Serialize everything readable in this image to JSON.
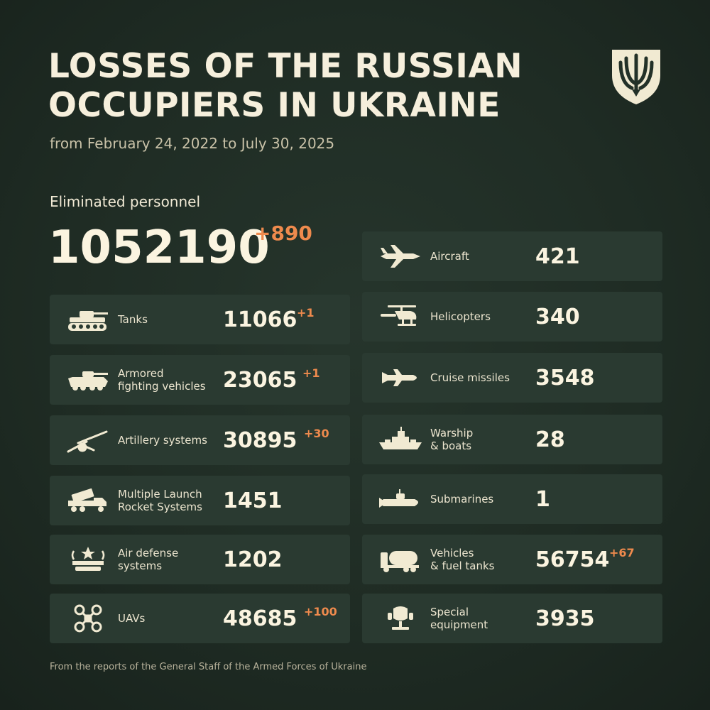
{
  "header": {
    "title_line1": "LOSSES OF THE RUSSIAN",
    "title_line2": "OCCUPIERS IN UKRAINE",
    "subtitle": "from February 24, 2022 to July 30, 2025"
  },
  "emblem": {
    "icon": "trident-shield-icon"
  },
  "personnel": {
    "label": "Eliminated personnel",
    "value": "1052190",
    "delta": "+890"
  },
  "left_cards": [
    {
      "icon": "tank-icon",
      "label": "Tanks",
      "value": "11066",
      "delta": "+1"
    },
    {
      "icon": "afv-icon",
      "label": "Armored\nfighting vehicles",
      "value": "23065",
      "delta": "+1"
    },
    {
      "icon": "artillery-icon",
      "label": "Artillery systems",
      "value": "30895",
      "delta": "+30"
    },
    {
      "icon": "mlrs-icon",
      "label": "Multiple Launch\nRocket Systems",
      "value": "1451",
      "delta": ""
    },
    {
      "icon": "air-defense-icon",
      "label": "Air defense\nsystems",
      "value": "1202",
      "delta": ""
    },
    {
      "icon": "uav-icon",
      "label": "UAVs",
      "value": "48685",
      "delta": "+100"
    }
  ],
  "right_cards": [
    {
      "icon": "aircraft-icon",
      "label": "Aircraft",
      "value": "421",
      "delta": ""
    },
    {
      "icon": "helicopter-icon",
      "label": "Helicopters",
      "value": "340",
      "delta": ""
    },
    {
      "icon": "cruise-missile-icon",
      "label": "Cruise missiles",
      "value": "3548",
      "delta": ""
    },
    {
      "icon": "warship-icon",
      "label": "Warship\n& boats",
      "value": "28",
      "delta": ""
    },
    {
      "icon": "submarine-icon",
      "label": "Submarines",
      "value": "1",
      "delta": ""
    },
    {
      "icon": "fuel-truck-icon",
      "label": "Vehicles\n& fuel tanks",
      "value": "56754",
      "delta": "+67"
    },
    {
      "icon": "special-equipment-icon",
      "label": "Special\nequipment",
      "value": "3935",
      "delta": ""
    }
  ],
  "footer": {
    "source": "From the reports of the General Staff of the Armed Forces of Ukraine"
  },
  "colors": {
    "background": "#1f2c24",
    "card": "#2a3a31",
    "text": "#f3ecd8",
    "accent": "#ee8a4d"
  }
}
